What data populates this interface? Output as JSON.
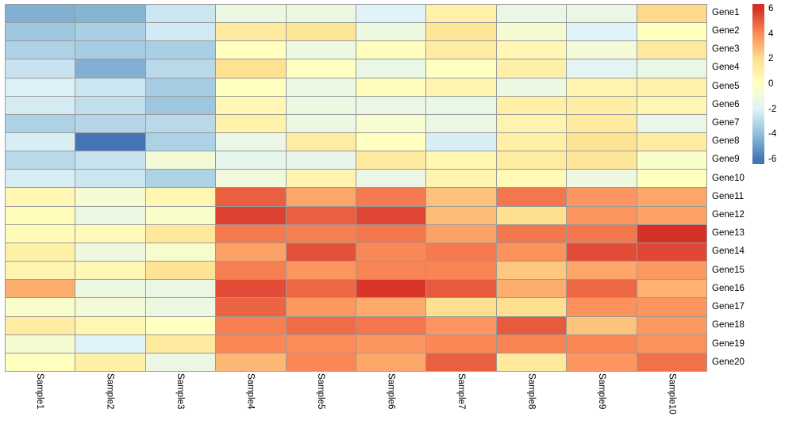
{
  "chart_data": {
    "type": "heatmap",
    "title": "",
    "xlabel": "",
    "ylabel": "",
    "grid_color": "#9a9a9a",
    "background": "#ffffff",
    "rows": [
      "Gene1",
      "Gene2",
      "Gene3",
      "Gene4",
      "Gene5",
      "Gene6",
      "Gene7",
      "Gene8",
      "Gene9",
      "Gene10",
      "Gene11",
      "Gene12",
      "Gene13",
      "Gene14",
      "Gene15",
      "Gene16",
      "Gene17",
      "Gene18",
      "Gene19",
      "Gene20"
    ],
    "columns": [
      "Sample1",
      "Sample2",
      "Sample3",
      "Sample4",
      "Sample5",
      "Sample6",
      "Sample7",
      "Sample8",
      "Sample9",
      "Sample10"
    ],
    "values": [
      [
        -4.4,
        -4.3,
        -2.5,
        -1.2,
        -1.2,
        -2.0,
        0.9,
        -1.3,
        -1.3,
        2.2
      ],
      [
        -3.7,
        -3.4,
        -2.4,
        1.4,
        1.6,
        -1.1,
        1.6,
        -0.7,
        -2.0,
        0.0
      ],
      [
        -3.3,
        -3.5,
        -3.4,
        0.0,
        -1.2,
        0.1,
        1.2,
        0.5,
        -0.8,
        1.4
      ],
      [
        -2.6,
        -4.4,
        -3.0,
        1.9,
        0.0,
        -1.4,
        0.0,
        1.0,
        -1.8,
        -1.4
      ],
      [
        -2.1,
        -2.5,
        -3.5,
        0.0,
        -1.2,
        0.1,
        0.7,
        -1.2,
        0.7,
        0.8
      ],
      [
        -2.3,
        -2.8,
        -3.7,
        0.5,
        -1.2,
        -1.3,
        -1.4,
        1.0,
        1.1,
        0.6
      ],
      [
        -3.3,
        -3.1,
        -3.0,
        0.8,
        -1.2,
        -0.6,
        -1.3,
        0.7,
        1.3,
        -1.4
      ],
      [
        -2.2,
        -6.0,
        -3.3,
        -1.3,
        1.2,
        0.0,
        -2.2,
        1.0,
        1.8,
        1.2
      ],
      [
        -3.0,
        -2.6,
        -0.8,
        -1.6,
        -1.5,
        1.4,
        0.6,
        1.2,
        1.6,
        -0.4
      ],
      [
        -2.2,
        -2.5,
        -3.3,
        -1.0,
        0.7,
        -1.3,
        0.7,
        0.4,
        -1.1,
        0.0
      ],
      [
        0.5,
        -0.7,
        0.6,
        5.0,
        3.4,
        4.4,
        2.7,
        4.5,
        3.8,
        3.4
      ],
      [
        0.2,
        -1.2,
        -0.4,
        5.6,
        5.0,
        5.5,
        2.9,
        2.0,
        3.8,
        3.5
      ],
      [
        0.3,
        0.3,
        1.5,
        4.4,
        4.3,
        4.5,
        3.5,
        4.5,
        4.5,
        6.0
      ],
      [
        1.0,
        -1.1,
        -0.5,
        3.5,
        5.3,
        4.1,
        4.4,
        3.9,
        5.4,
        5.5
      ],
      [
        0.7,
        0.5,
        1.8,
        4.3,
        3.8,
        4.2,
        4.2,
        2.6,
        3.4,
        3.7
      ],
      [
        3.2,
        -1.2,
        -1.3,
        5.4,
        4.8,
        5.9,
        5.1,
        3.2,
        4.8,
        3.1
      ],
      [
        -0.4,
        -0.8,
        -1.2,
        4.9,
        3.7,
        3.3,
        2.0,
        2.0,
        3.9,
        3.8
      ],
      [
        1.2,
        0.6,
        0.0,
        4.3,
        4.7,
        4.5,
        3.8,
        5.1,
        2.7,
        3.7
      ],
      [
        -0.7,
        -2.0,
        1.4,
        4.1,
        4.0,
        3.8,
        4.1,
        4.2,
        4.1,
        3.9
      ],
      [
        0.0,
        1.0,
        -1.3,
        3.0,
        4.1,
        3.4,
        5.0,
        1.4,
        3.8,
        4.6
      ]
    ],
    "color_scale": {
      "name": "RdYlBu-reversed",
      "stops": [
        {
          "value": -6,
          "color": "#4575b4"
        },
        {
          "value": -4,
          "color": "#91bfdb"
        },
        {
          "value": -2,
          "color": "#e0f3f8"
        },
        {
          "value": 0,
          "color": "#ffffbf"
        },
        {
          "value": 2,
          "color": "#fee090"
        },
        {
          "value": 4,
          "color": "#fc8d59"
        },
        {
          "value": 6,
          "color": "#d73027"
        }
      ]
    },
    "legend": {
      "position": "right",
      "min": -6.4,
      "max": 6.4,
      "ticks": [
        6,
        4,
        2,
        0,
        -2,
        -4,
        -6
      ]
    }
  }
}
